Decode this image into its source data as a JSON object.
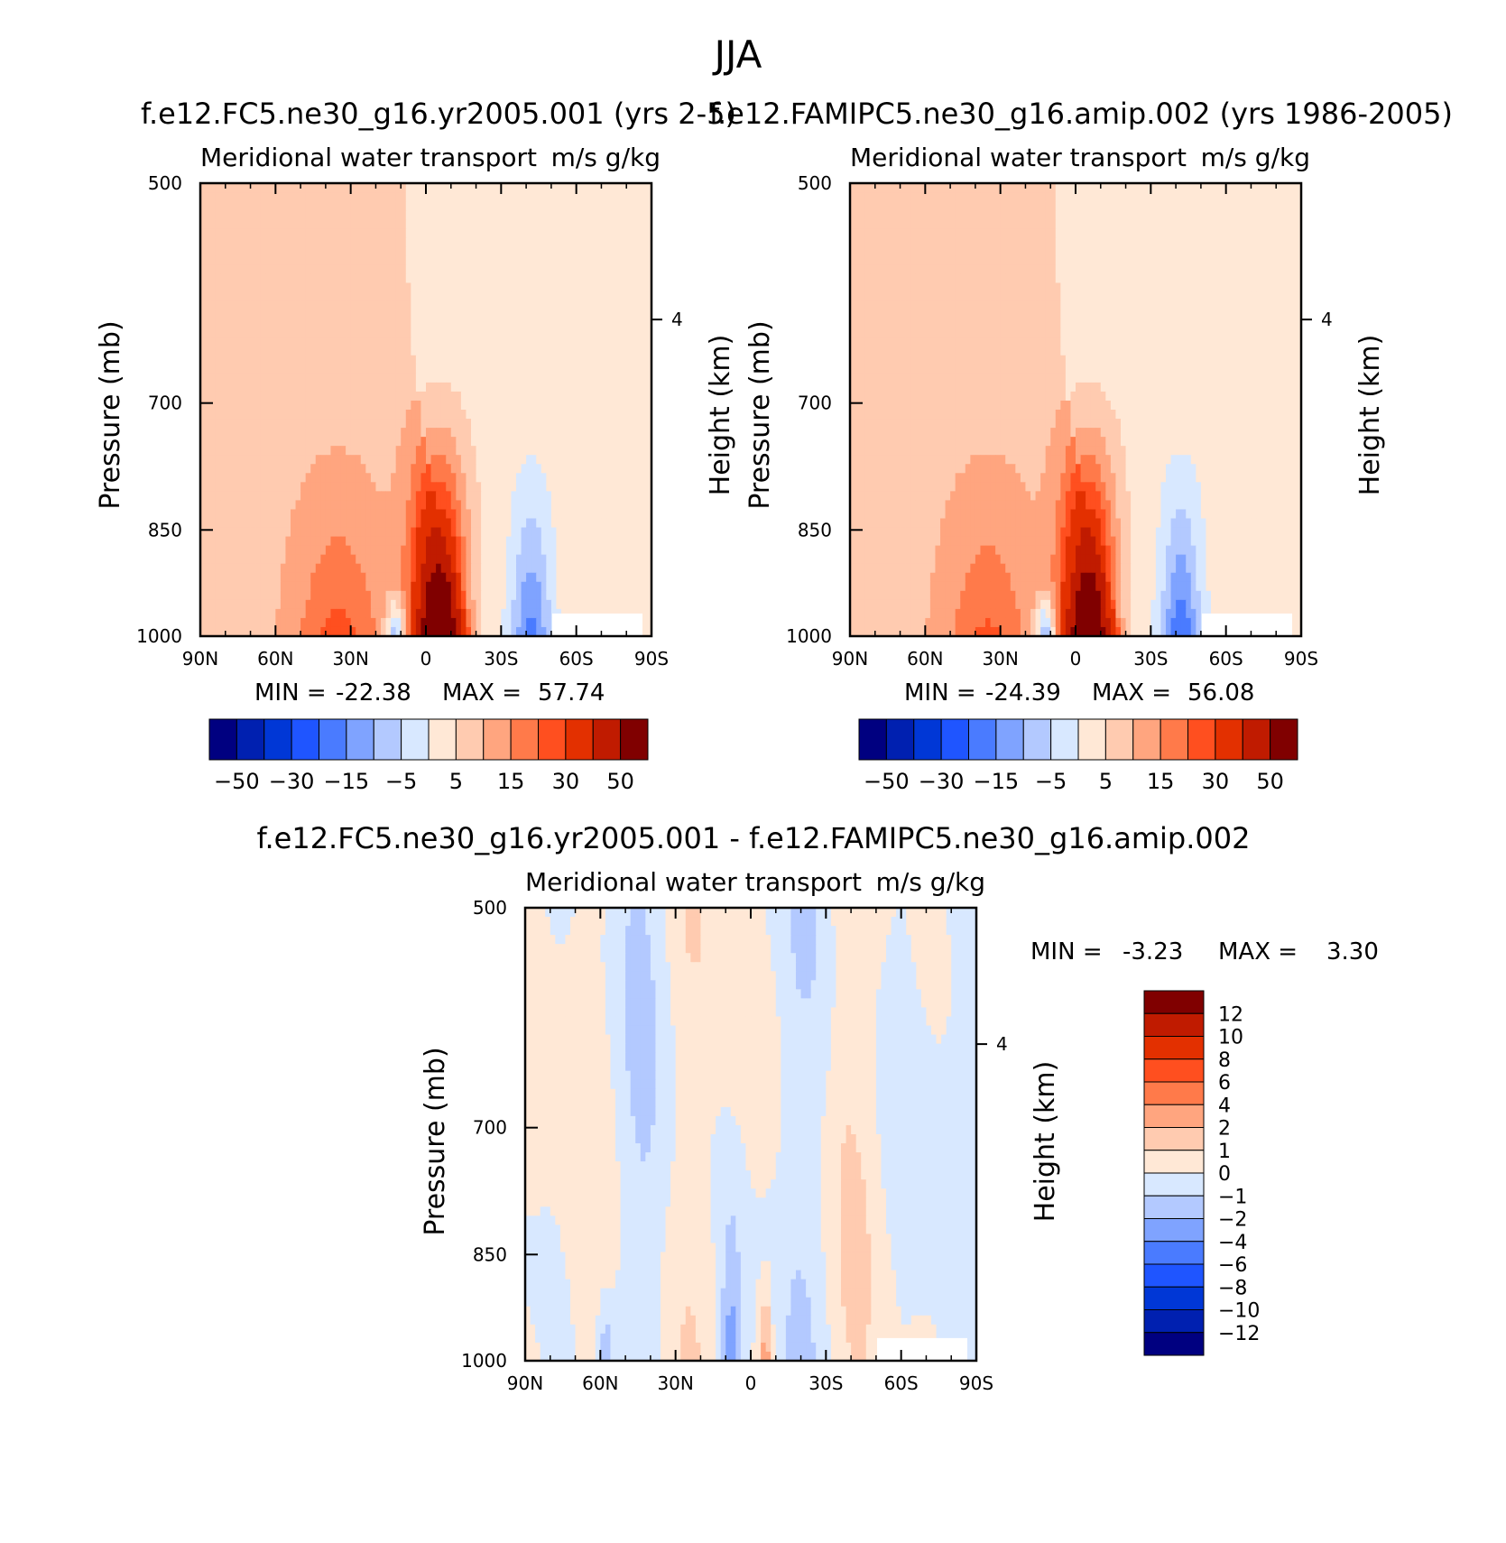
{
  "figure": {
    "title": "JJA",
    "colors": {
      "full_scale": [
        "#000080",
        "#0020b0",
        "#0037d6",
        "#1f55ff",
        "#4a7bff",
        "#7fa3ff",
        "#b3c9ff",
        "#d8e8ff",
        "#ffe8d6",
        "#ffcbb0",
        "#ffa57f",
        "#ff7a4a",
        "#ff4f1f",
        "#e33000",
        "#c01b00",
        "#800000"
      ],
      "diff_scale": [
        "#000080",
        "#0020b0",
        "#0037d6",
        "#1f55ff",
        "#4a7bff",
        "#7fa3ff",
        "#b3c9ff",
        "#d8e8ff",
        "#ffe8d6",
        "#ffcbb0",
        "#ffa57f",
        "#ff7a4a",
        "#ff4f1f",
        "#e33000",
        "#c01b00",
        "#800000"
      ]
    }
  },
  "chart_data": [
    {
      "type": "heatmap",
      "id": "model",
      "title": "f.e12.FC5.ne30_g16.yr2005.001 (yrs 2-5)",
      "subtitle_left": "Meridional water transport",
      "subtitle_right": "m/s g/kg",
      "ylabel": "Pressure (mb)",
      "ylabel_right": "Height (km)",
      "xticks": [
        "90N",
        "60N",
        "30N",
        "0",
        "30S",
        "60S",
        "90S"
      ],
      "yticks": [
        "500",
        "700",
        "850",
        "1000"
      ],
      "yticks_right": [
        "4"
      ],
      "stats": {
        "min_label": "MIN =",
        "min": "-22.38",
        "max_label": "MAX =",
        "max": "57.74"
      },
      "colorbar_labels": [
        "-50",
        "-30",
        "-15",
        "-5",
        "5",
        "15",
        "30",
        "50"
      ],
      "fields": {
        "ridge_amp": 57.7,
        "secondary_amp": 14,
        "south_amp": -20,
        "vortex_amp": -22
      }
    },
    {
      "type": "heatmap",
      "id": "obs",
      "title": "f.e12.FAMIPC5.ne30_g16.amip.002 (yrs 1986-2005)",
      "subtitle_left": "Meridional water transport",
      "subtitle_right": "m/s g/kg",
      "ylabel": "Pressure (mb)",
      "ylabel_right": "Height (km)",
      "xticks": [
        "90N",
        "60N",
        "30N",
        "0",
        "30S",
        "60S",
        "90S"
      ],
      "yticks": [
        "500",
        "700",
        "850",
        "1000"
      ],
      "yticks_right": [
        "4"
      ],
      "stats": {
        "min_label": "MIN =",
        "min": "-24.39",
        "max_label": "MAX =",
        "max": "56.08"
      },
      "colorbar_labels": [
        "-50",
        "-30",
        "-15",
        "-5",
        "5",
        "15",
        "30",
        "50"
      ],
      "fields": {
        "ridge_amp": 56.1,
        "secondary_amp": 13,
        "south_amp": -22,
        "vortex_amp": -24
      }
    },
    {
      "type": "heatmap",
      "id": "diff",
      "title": "f.e12.FC5.ne30_g16.yr2005.001 - f.e12.FAMIPC5.ne30_g16.amip.002",
      "subtitle_left": "Meridional water transport",
      "subtitle_right": "m/s g/kg",
      "ylabel": "Pressure (mb)",
      "ylabel_right": "Height (km)",
      "xticks": [
        "90N",
        "60N",
        "30N",
        "0",
        "30S",
        "60S",
        "90S"
      ],
      "yticks": [
        "500",
        "700",
        "850",
        "1000"
      ],
      "yticks_right": [
        "4"
      ],
      "stats": {
        "min_label": "MIN =",
        "min": "-3.23",
        "max_label": "MAX =",
        "max": "3.30"
      },
      "colorbar_labels": [
        "12",
        "10",
        "8",
        "6",
        "4",
        "2",
        "1",
        "0",
        "-1",
        "-2",
        "-4",
        "-6",
        "-8",
        "-10",
        "-12"
      ]
    }
  ]
}
